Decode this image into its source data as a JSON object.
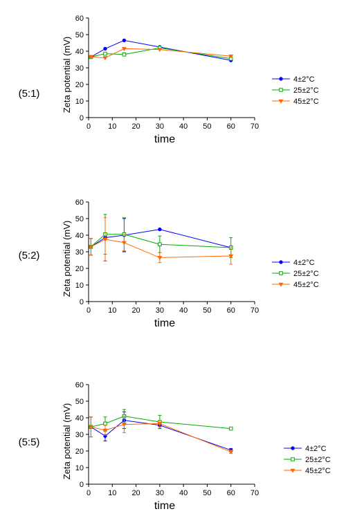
{
  "chart_data": [
    {
      "type": "line",
      "panel_label": "(5:1)",
      "xlabel": "time",
      "ylabel": "Zeta potential (mV)",
      "xlim": [
        0,
        70
      ],
      "ylim": [
        0,
        60
      ],
      "xticks": [
        0,
        10,
        20,
        30,
        40,
        50,
        60,
        70
      ],
      "yticks": [
        0,
        10,
        20,
        30,
        40,
        50,
        60
      ],
      "x": [
        1,
        7,
        15,
        30,
        60
      ],
      "legend_position": "right",
      "series": [
        {
          "name": "4±2°C",
          "color": "#0000ff",
          "marker": "circle",
          "values": [
            36.5,
            41.5,
            46.5,
            42.5,
            34.5
          ],
          "errors": [
            0,
            0,
            0,
            0,
            0
          ]
        },
        {
          "name": "25±2°C",
          "color": "#00aa00",
          "marker": "square",
          "values": [
            36.5,
            38.5,
            38,
            42,
            35.5
          ],
          "errors": [
            0,
            0,
            0,
            0,
            0
          ]
        },
        {
          "name": "45±2°C",
          "color": "#ff6600",
          "marker": "triangle",
          "values": [
            36.5,
            36,
            41.5,
            41,
            37
          ],
          "errors": [
            0,
            0,
            0,
            0,
            0
          ]
        }
      ]
    },
    {
      "type": "line",
      "panel_label": "(5:2)",
      "xlabel": "time",
      "ylabel": "Zeta potential (mV)",
      "xlim": [
        0,
        70
      ],
      "ylim": [
        0,
        60
      ],
      "xticks": [
        0,
        10,
        20,
        30,
        40,
        50,
        60,
        70
      ],
      "yticks": [
        0,
        10,
        20,
        30,
        40,
        50,
        60
      ],
      "x": [
        1,
        7,
        15,
        30,
        60
      ],
      "legend_position": "right",
      "series": [
        {
          "name": "4±2°C",
          "color": "#0000ff",
          "marker": "circle",
          "values": [
            33,
            38.5,
            40,
            43.5,
            32.5
          ],
          "errors": [
            5,
            14,
            10,
            0,
            1
          ]
        },
        {
          "name": "25±2°C",
          "color": "#00aa00",
          "marker": "square",
          "values": [
            33,
            40.5,
            40.5,
            34.5,
            32.5
          ],
          "errors": [
            5,
            12,
            10,
            5,
            6
          ]
        },
        {
          "name": "45±2°C",
          "color": "#ff6600",
          "marker": "triangle",
          "values": [
            33,
            37.5,
            35.5,
            26.5,
            27.5
          ],
          "errors": [
            5,
            13,
            5,
            3,
            5
          ]
        }
      ]
    },
    {
      "type": "line",
      "panel_label": "(5:5)",
      "xlabel": "time",
      "ylabel": "Zeta potential (mV)",
      "xlim": [
        0,
        70
      ],
      "ylim": [
        0,
        60
      ],
      "xticks": [
        0,
        10,
        20,
        30,
        40,
        50,
        60,
        70
      ],
      "yticks": [
        0,
        10,
        20,
        30,
        40,
        50,
        60
      ],
      "x": [
        1,
        7,
        15,
        30,
        60
      ],
      "legend_position": "right",
      "series": [
        {
          "name": "4±2°C",
          "color": "#0000ff",
          "marker": "circle",
          "values": [
            34.5,
            29,
            38.5,
            35.5,
            20.5
          ],
          "errors": [
            6,
            3,
            5,
            2,
            1
          ]
        },
        {
          "name": "25±2°C",
          "color": "#00aa00",
          "marker": "square",
          "values": [
            34.5,
            36.5,
            41,
            37.5,
            33.5
          ],
          "errors": [
            6,
            4,
            4,
            4,
            0
          ]
        },
        {
          "name": "45±2°C",
          "color": "#ff6600",
          "marker": "triangle",
          "values": [
            34.5,
            32.5,
            36,
            36.5,
            19.5
          ],
          "errors": [
            6,
            3,
            5,
            2,
            1
          ]
        }
      ]
    }
  ]
}
